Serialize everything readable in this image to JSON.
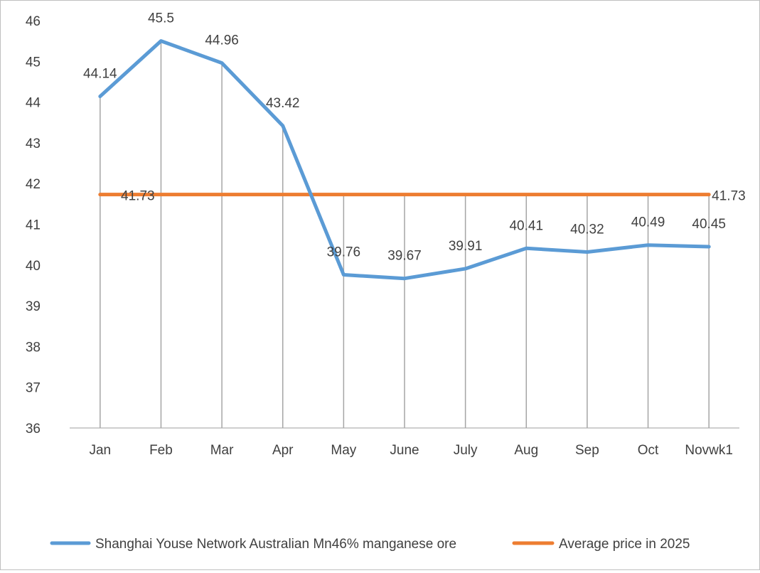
{
  "chart_data": {
    "type": "line",
    "title": "",
    "xlabel": "",
    "ylabel": "",
    "categories": [
      "Jan",
      "Feb",
      "Mar",
      "Apr",
      "May",
      "June",
      "July",
      "Aug",
      "Sep",
      "Oct",
      "Novwk1"
    ],
    "ylim": [
      36,
      46
    ],
    "yticks": [
      "36",
      "37",
      "38",
      "39",
      "40",
      "41",
      "42",
      "43",
      "44",
      "45",
      "46"
    ],
    "grid": false,
    "drop_lines": true,
    "legend_position": "bottom",
    "series": [
      {
        "name": "Shanghai Youse Network Australian Mn46% manganese ore",
        "color": "#5b9bd5",
        "values": [
          44.14,
          45.5,
          44.96,
          43.42,
          39.76,
          39.67,
          39.91,
          40.41,
          40.32,
          40.49,
          40.45
        ],
        "labels": [
          "44.14",
          "45.5",
          "44.96",
          "43.42",
          "39.76",
          "39.67",
          "39.91",
          "40.41",
          "40.32",
          "40.49",
          "40.45"
        ]
      },
      {
        "name": "Average price in 2025",
        "color": "#ed7d31",
        "values": [
          41.73,
          41.73,
          41.73,
          41.73,
          41.73,
          41.73,
          41.73,
          41.73,
          41.73,
          41.73,
          41.73
        ],
        "labels_shown": [
          "41.73",
          "41.73"
        ]
      }
    ]
  }
}
